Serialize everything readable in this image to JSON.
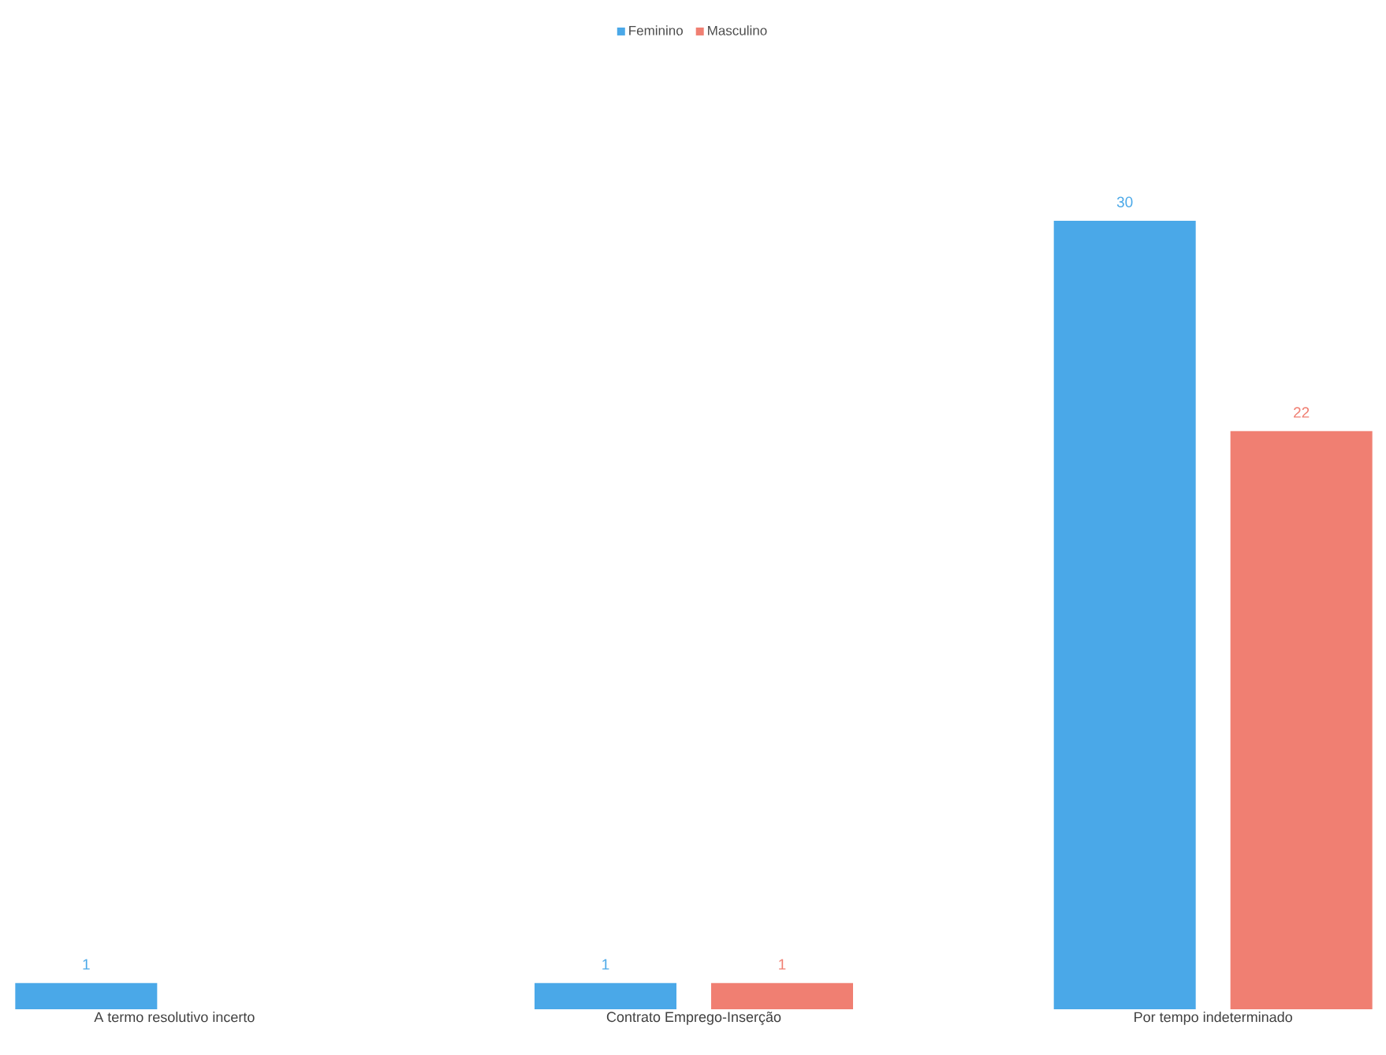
{
  "chart_data": {
    "type": "bar",
    "categories": [
      "A termo resolutivo incerto",
      "Contrato Emprego-Inserção",
      "Por tempo indeterminado"
    ],
    "series": [
      {
        "name": "Feminino",
        "color": "#4aa8e8",
        "values": [
          1,
          1,
          30
        ]
      },
      {
        "name": "Masculino",
        "color": "#f07f72",
        "values": [
          null,
          1,
          22
        ]
      }
    ],
    "data_labels": true,
    "legend": "top"
  }
}
